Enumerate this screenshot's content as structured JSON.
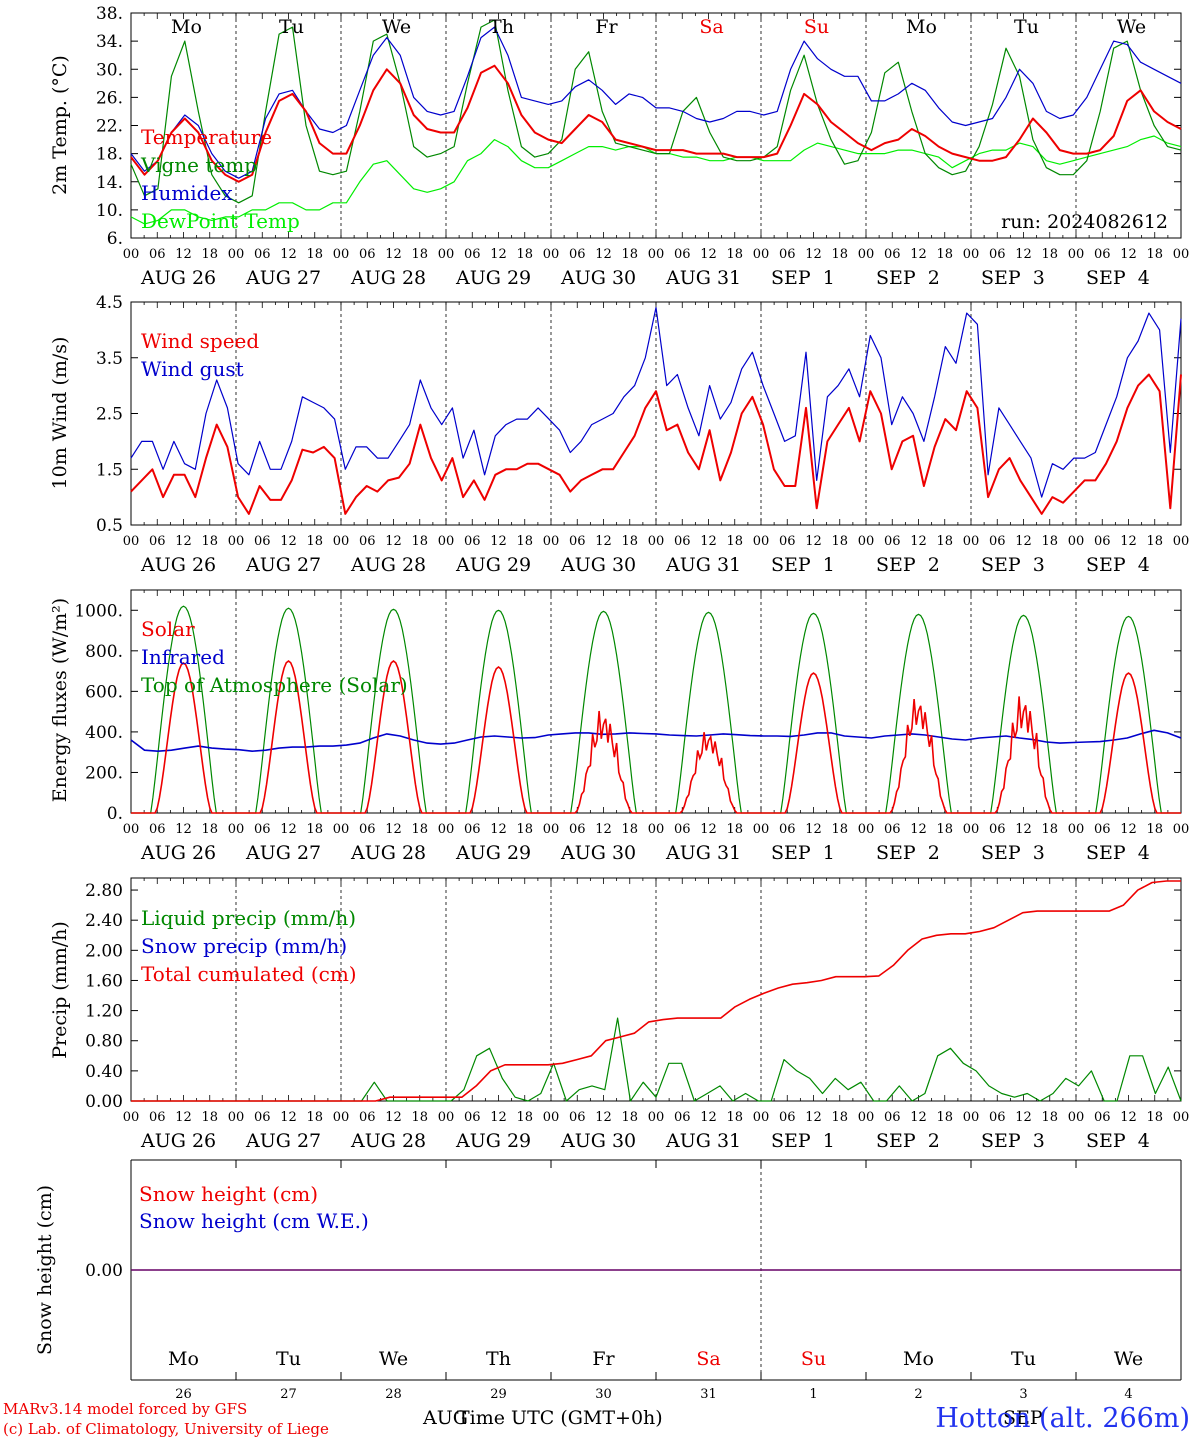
{
  "chart_data": [
    {
      "type": "line",
      "ylabel": "2m Temp. (°C)",
      "ylim": [
        6,
        38
      ],
      "ytick_labels": [
        "6.",
        "10.",
        "14.",
        "18.",
        "22.",
        "26.",
        "30.",
        "34.",
        "38."
      ],
      "ytick_values": [
        6,
        10,
        14,
        18,
        22,
        26,
        30,
        34,
        38
      ],
      "legend": [
        "Temperature",
        "Vigne temp",
        "Humidex",
        "DewPoint Temp"
      ],
      "run_label": "run: 2024082612",
      "weekdays": [
        {
          "label": "Mo",
          "color": "#000000"
        },
        {
          "label": "Tu",
          "color": "#000000"
        },
        {
          "label": "We",
          "color": "#000000"
        },
        {
          "label": "Th",
          "color": "#000000"
        },
        {
          "label": "Fr",
          "color": "#000000"
        },
        {
          "label": "Sa",
          "color": "#ee0000"
        },
        {
          "label": "Su",
          "color": "#ee0000"
        },
        {
          "label": "Mo",
          "color": "#000000"
        },
        {
          "label": "Tu",
          "color": "#000000"
        },
        {
          "label": "We",
          "color": "#000000"
        }
      ],
      "series": [
        {
          "name": "Temperature",
          "color": "#ee0000",
          "width": 2,
          "values": [
            17.5,
            15,
            17,
            21,
            23,
            21,
            17,
            15,
            14,
            15,
            21,
            25.5,
            26.5,
            24,
            19.5,
            18,
            18,
            22,
            27,
            30,
            28,
            23.5,
            21.5,
            21,
            21,
            24.5,
            29.5,
            30.5,
            28,
            23.5,
            21,
            20,
            19.5,
            21.5,
            23.5,
            22.5,
            20,
            19.5,
            19,
            18.5,
            18.5,
            18.5,
            18,
            18,
            18,
            17.5,
            17.5,
            17.5,
            18,
            22,
            26.5,
            25,
            22.5,
            21,
            19.5,
            18.5,
            19.5,
            20,
            21.5,
            20.5,
            19,
            18,
            17.5,
            17,
            17,
            17.5,
            20,
            23,
            21,
            18.5,
            18,
            18,
            18.5,
            20.5,
            25.5,
            27,
            24,
            22.5,
            21.5
          ]
        },
        {
          "name": "Vigne temp",
          "color": "#008800",
          "width": 1.2,
          "values": [
            16.5,
            12,
            13,
            29,
            34,
            24,
            15,
            12,
            11,
            12,
            24,
            35,
            36,
            22,
            15.5,
            15,
            15.5,
            24,
            34,
            35,
            28,
            19,
            17.5,
            18,
            19,
            28,
            36,
            37,
            27,
            19,
            17.5,
            18,
            20,
            30,
            32.5,
            24,
            19.5,
            19,
            18.5,
            18,
            18,
            24,
            26,
            21,
            17.5,
            17,
            17,
            17.5,
            19,
            27,
            32,
            25,
            20,
            16.5,
            17,
            21,
            29.5,
            31,
            24,
            18,
            16,
            15,
            15.5,
            19,
            25,
            33,
            29,
            20,
            16,
            15,
            15,
            17,
            24,
            33,
            34,
            27,
            22,
            19,
            18.5
          ]
        },
        {
          "name": "Humidex",
          "color": "#0000cc",
          "width": 1.2,
          "values": [
            18,
            15.5,
            17,
            21,
            23.5,
            22,
            18,
            15.5,
            14.5,
            15.5,
            23,
            26.5,
            27,
            24,
            21.5,
            21,
            22,
            27,
            32,
            34.5,
            32,
            26,
            24,
            23.5,
            24,
            29,
            34.5,
            36,
            32,
            26,
            25.5,
            25,
            25.5,
            27.5,
            28.5,
            27,
            25,
            26.5,
            26,
            24.5,
            24.5,
            24,
            23,
            22.5,
            23,
            24,
            24,
            23.5,
            24,
            30,
            34,
            31.5,
            30,
            29,
            29,
            25.5,
            25.5,
            26.5,
            28,
            27,
            24.5,
            22.5,
            22,
            22.5,
            23,
            26,
            30,
            28,
            24,
            23,
            23.5,
            26,
            30,
            34,
            33.5,
            31,
            30,
            29,
            28
          ]
        },
        {
          "name": "DewPoint Temp",
          "color": "#00ee00",
          "width": 1.2,
          "values": [
            9,
            8,
            8.5,
            10,
            10,
            9,
            8.5,
            9,
            9,
            10,
            10,
            11,
            11,
            10,
            10,
            11,
            11,
            14,
            16.5,
            17,
            15,
            13,
            12.5,
            13,
            14,
            17,
            18,
            20,
            19,
            17,
            16,
            16,
            17,
            18,
            19,
            19,
            18.5,
            19,
            19,
            18,
            18,
            17.5,
            17.5,
            17,
            17,
            17.5,
            17.5,
            17,
            17,
            17,
            18.5,
            19.5,
            19,
            18.5,
            18,
            18,
            18,
            18.5,
            18.5,
            18,
            17.5,
            16,
            17,
            18,
            18.5,
            18.5,
            19.5,
            19,
            17,
            16.5,
            17,
            17.5,
            18,
            18.5,
            19,
            20,
            20.5,
            19.5,
            19
          ]
        }
      ]
    },
    {
      "type": "line",
      "ylabel": "10m Wind (m/s)",
      "ylim": [
        0.5,
        4.5
      ],
      "ytick_labels": [
        "0.5",
        "1.5",
        "2.5",
        "3.5",
        "4.5"
      ],
      "ytick_values": [
        0.5,
        1.5,
        2.5,
        3.5,
        4.5
      ],
      "legend": [
        "Wind speed",
        "Wind gust"
      ],
      "series": [
        {
          "name": "Wind speed",
          "color": "#ee0000",
          "width": 2,
          "values": [
            1.1,
            1.3,
            1.5,
            1.0,
            1.4,
            1.4,
            1.0,
            1.7,
            2.3,
            1.9,
            1.0,
            0.7,
            1.2,
            0.95,
            0.95,
            1.3,
            1.85,
            1.8,
            1.9,
            1.7,
            0.7,
            1.0,
            1.2,
            1.1,
            1.3,
            1.35,
            1.6,
            2.3,
            1.7,
            1.3,
            1.7,
            1.0,
            1.3,
            0.95,
            1.4,
            1.5,
            1.5,
            1.6,
            1.6,
            1.5,
            1.4,
            1.1,
            1.3,
            1.4,
            1.5,
            1.5,
            1.8,
            2.1,
            2.6,
            2.9,
            2.2,
            2.3,
            1.8,
            1.5,
            2.2,
            1.3,
            1.8,
            2.5,
            2.8,
            2.3,
            1.5,
            1.2,
            1.2,
            2.6,
            0.8,
            2.0,
            2.3,
            2.6,
            2.0,
            2.9,
            2.5,
            1.5,
            2.0,
            2.1,
            1.2,
            1.9,
            2.4,
            2.2,
            2.9,
            2.6,
            1.0,
            1.5,
            1.7,
            1.3,
            1.0,
            0.7,
            1.0,
            0.9,
            1.1,
            1.3,
            1.3,
            1.6,
            2.0,
            2.6,
            3.0,
            3.2,
            2.9,
            0.8,
            3.2
          ]
        },
        {
          "name": "Wind gust",
          "color": "#0000cc",
          "width": 1.2,
          "values": [
            1.7,
            2.0,
            2.0,
            1.5,
            2.0,
            1.6,
            1.5,
            2.5,
            3.1,
            2.6,
            1.6,
            1.4,
            2.0,
            1.5,
            1.5,
            2.0,
            2.8,
            2.7,
            2.6,
            2.4,
            1.5,
            1.9,
            1.9,
            1.7,
            1.7,
            2.0,
            2.3,
            3.1,
            2.6,
            2.3,
            2.6,
            1.7,
            2.2,
            1.4,
            2.1,
            2.3,
            2.4,
            2.4,
            2.6,
            2.4,
            2.2,
            1.8,
            2.0,
            2.3,
            2.4,
            2.5,
            2.8,
            3.0,
            3.5,
            4.4,
            3.0,
            3.2,
            2.6,
            2.1,
            3.0,
            2.4,
            2.7,
            3.3,
            3.6,
            3.0,
            2.5,
            2.0,
            2.1,
            3.6,
            1.3,
            2.8,
            3.0,
            3.3,
            2.8,
            3.9,
            3.5,
            2.3,
            2.8,
            2.5,
            2.0,
            2.8,
            3.7,
            3.4,
            4.3,
            4.1,
            1.4,
            2.6,
            2.3,
            2.0,
            1.7,
            1.0,
            1.6,
            1.5,
            1.7,
            1.7,
            1.8,
            2.3,
            2.8,
            3.5,
            3.8,
            4.3,
            4.0,
            1.8,
            4.2
          ]
        }
      ]
    },
    {
      "type": "line",
      "ylabel": "Energy fluxes (W/m²)",
      "ylim": [
        0,
        1100
      ],
      "ytick_labels": [
        "0.",
        "200.",
        "400.",
        "600.",
        "800.",
        "1000."
      ],
      "ytick_values": [
        0,
        200,
        400,
        600,
        800,
        1000
      ],
      "legend": [
        "Solar",
        "Infrared",
        "Top of Atmosphere (Solar)"
      ],
      "daily_solar_peak": [
        740,
        750,
        750,
        720,
        560,
        440,
        690,
        620,
        640,
        690
      ],
      "daily_toa_peak": [
        1020,
        1010,
        1005,
        1000,
        995,
        990,
        985,
        980,
        975,
        970
      ],
      "series": [
        {
          "name": "Solar",
          "color": "#ee0000",
          "width": 1.6
        },
        {
          "name": "Infrared",
          "color": "#0000cc",
          "width": 1.6,
          "values": [
            360,
            310,
            305,
            310,
            320,
            330,
            320,
            315,
            312,
            305,
            310,
            320,
            325,
            325,
            330,
            330,
            335,
            345,
            370,
            390,
            380,
            360,
            345,
            340,
            345,
            360,
            375,
            380,
            375,
            370,
            372,
            385,
            390,
            395,
            395,
            388,
            390,
            395,
            392,
            390,
            385,
            382,
            380,
            385,
            390,
            386,
            382,
            380,
            380,
            378,
            385,
            395,
            395,
            380,
            375,
            370,
            380,
            385,
            390,
            385,
            375,
            365,
            360,
            370,
            375,
            380,
            370,
            362,
            350,
            345,
            348,
            350,
            352,
            360,
            370,
            390,
            408,
            395,
            370
          ]
        },
        {
          "name": "Top of Atmosphere (Solar)",
          "color": "#008800",
          "width": 1.2
        }
      ]
    },
    {
      "type": "line",
      "ylabel": "Precip (mm/h)",
      "ylim": [
        0,
        2.96
      ],
      "ytick_labels": [
        "0.00",
        "0.40",
        "0.80",
        "1.20",
        "1.60",
        "2.00",
        "2.40",
        "2.80"
      ],
      "ytick_values": [
        0,
        0.4,
        0.8,
        1.2,
        1.6,
        2.0,
        2.4,
        2.8
      ],
      "legend": [
        "Liquid precip (mm/h)",
        "Snow precip (mm/h)",
        "Total cumulated (cm)"
      ],
      "series": [
        {
          "name": "Liquid precip (mm/h)",
          "color": "#008800",
          "width": 1.2,
          "values": [
            0,
            0,
            0,
            0,
            0,
            0,
            0,
            0,
            0,
            0,
            0,
            0,
            0,
            0,
            0,
            0,
            0,
            0,
            0,
            0.25,
            0,
            0,
            0,
            0,
            0,
            0,
            0.15,
            0.6,
            0.7,
            0.3,
            0.05,
            0,
            0.1,
            0.5,
            0,
            0.15,
            0.2,
            0.15,
            1.1,
            0,
            0.25,
            0.05,
            0.5,
            0.5,
            0,
            0.1,
            0.2,
            0,
            0.1,
            0,
            0,
            0.55,
            0.4,
            0.3,
            0.1,
            0.3,
            0.15,
            0.25,
            0,
            0,
            0.2,
            0,
            0.1,
            0.6,
            0.7,
            0.5,
            0.4,
            0.2,
            0.1,
            0.05,
            0.1,
            0,
            0.1,
            0.3,
            0.2,
            0.4,
            0,
            0,
            0.6,
            0.6,
            0.1,
            0.45,
            0
          ]
        },
        {
          "name": "Snow precip (mm/h)",
          "color": "#0000cc",
          "width": 1.2,
          "values": []
        },
        {
          "name": "Total cumulated (cm)",
          "color": "#ee0000",
          "width": 1.6,
          "values": [
            0,
            0,
            0,
            0,
            0,
            0,
            0,
            0,
            0,
            0,
            0,
            0,
            0,
            0,
            0,
            0,
            0,
            0,
            0.05,
            0.05,
            0.05,
            0.05,
            0.05,
            0.05,
            0.2,
            0.4,
            0.48,
            0.48,
            0.48,
            0.48,
            0.5,
            0.55,
            0.6,
            0.8,
            0.85,
            0.9,
            1.05,
            1.08,
            1.1,
            1.1,
            1.1,
            1.1,
            1.25,
            1.35,
            1.43,
            1.5,
            1.55,
            1.57,
            1.6,
            1.65,
            1.65,
            1.65,
            1.66,
            1.8,
            2.0,
            2.15,
            2.2,
            2.22,
            2.22,
            2.25,
            2.3,
            2.4,
            2.5,
            2.52,
            2.52,
            2.52,
            2.52,
            2.52,
            2.52,
            2.6,
            2.8,
            2.9,
            2.92,
            2.92
          ]
        }
      ]
    },
    {
      "type": "line",
      "ylabel": "Snow height (cm)",
      "ytick_labels": [
        "0.00"
      ],
      "legend": [
        "Snow height (cm)",
        "Snow height (cm W.E.)"
      ],
      "series": [
        {
          "name": "Snow height (cm)",
          "color": "#ee0000",
          "values": [
            0,
            0
          ]
        },
        {
          "name": "Snow height (cm W.E.)",
          "color": "#0000cc",
          "values": [
            0,
            0
          ]
        }
      ],
      "weekdays": [
        {
          "label": "Mo",
          "color": "#000000"
        },
        {
          "label": "Tu",
          "color": "#000000"
        },
        {
          "label": "We",
          "color": "#000000"
        },
        {
          "label": "Th",
          "color": "#000000"
        },
        {
          "label": "Fr",
          "color": "#000000"
        },
        {
          "label": "Sa",
          "color": "#ee0000"
        },
        {
          "label": "Su",
          "color": "#ee0000"
        },
        {
          "label": "Mo",
          "color": "#000000"
        },
        {
          "label": "Tu",
          "color": "#000000"
        },
        {
          "label": "We",
          "color": "#000000"
        }
      ],
      "day_numbers": [
        "26",
        "27",
        "28",
        "29",
        "30",
        "31",
        "1",
        "2",
        "3",
        "4"
      ]
    }
  ],
  "x_axis": {
    "hour_labels": [
      "00",
      "06",
      "12",
      "18"
    ],
    "final_hour_label": "00",
    "day_labels": [
      "AUG 26",
      "AUG 27",
      "AUG 28",
      "AUG 29",
      "AUG 30",
      "AUG 31",
      "SEP  1",
      "SEP  2",
      "SEP  3",
      "SEP  4"
    ],
    "num_days": 10
  },
  "footer": {
    "credit_line1": "MARv3.14 model forced by GFS",
    "credit_line2": "(c) Lab. of Climatology, University of Liege",
    "month_left": "AUG",
    "xlabel": "Time UTC (GMT+0h)",
    "month_right": "SEP",
    "station": "Hotton (alt. 266m)"
  },
  "colors": {
    "red": "#ee0000",
    "green": "#008800",
    "blue": "#0000cc",
    "lime": "#00ee00",
    "purple": "#660066"
  }
}
